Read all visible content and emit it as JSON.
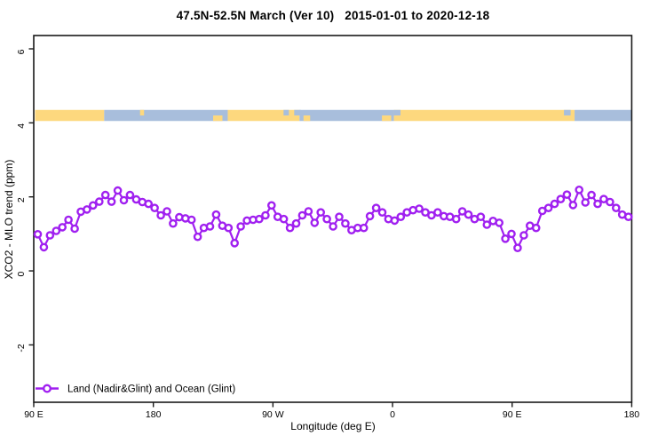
{
  "header": {
    "title": "47.5N-52.5N March (Ver 10)   2015-01-01 to 2020-12-18"
  },
  "chart_data": {
    "type": "line",
    "title": "47.5N-52.5N March (Ver 10)   2015-01-01 to 2020-12-18",
    "xlabel": "Longitude (deg E)",
    "ylabel": "XCO2 - MLO trend (ppm)",
    "grid": false,
    "background": "#ffffff",
    "axis_color": "#1a1a1a",
    "xlim": [
      90,
      540
    ],
    "ylim": [
      -3.55,
      6.36
    ],
    "x_ticks": [
      {
        "value": 90,
        "label": "90 E"
      },
      {
        "value": 180,
        "label": "180"
      },
      {
        "value": 270,
        "label": "90 W"
      },
      {
        "value": 360,
        "label": "0"
      },
      {
        "value": 450,
        "label": "90 E"
      },
      {
        "value": 540,
        "label": "180"
      }
    ],
    "y_ticks": [
      {
        "value": -2,
        "label": "-2"
      },
      {
        "value": 0,
        "label": "0"
      },
      {
        "value": 2,
        "label": "2"
      },
      {
        "value": 4,
        "label": "4"
      },
      {
        "value": 6,
        "label": "6"
      }
    ],
    "legend": {
      "position": "bottom-left",
      "label": "Land (Nadir&Glint) and Ocean (Glint)",
      "marker": "open-circle",
      "color": "#A020F0"
    },
    "series": [
      {
        "name": "Land (Nadir&Glint) and Ocean (Glint)",
        "color": "#A020F0",
        "marker": "open-circle",
        "x_first": 93,
        "x_last": 537.5,
        "values": [
          0.99,
          0.64,
          0.96,
          1.08,
          1.18,
          1.38,
          1.14,
          1.6,
          1.66,
          1.77,
          1.87,
          2.05,
          1.87,
          2.17,
          1.91,
          2.05,
          1.93,
          1.86,
          1.81,
          1.7,
          1.5,
          1.61,
          1.28,
          1.45,
          1.42,
          1.38,
          0.92,
          1.16,
          1.2,
          1.52,
          1.22,
          1.16,
          0.75,
          1.2,
          1.36,
          1.38,
          1.4,
          1.5,
          1.77,
          1.46,
          1.4,
          1.16,
          1.28,
          1.5,
          1.61,
          1.3,
          1.58,
          1.4,
          1.2,
          1.46,
          1.28,
          1.1,
          1.16,
          1.16,
          1.48,
          1.7,
          1.58,
          1.4,
          1.36,
          1.46,
          1.58,
          1.64,
          1.68,
          1.58,
          1.5,
          1.58,
          1.48,
          1.46,
          1.4,
          1.61,
          1.52,
          1.4,
          1.46,
          1.25,
          1.35,
          1.3,
          0.87,
          1.0,
          0.62,
          0.96,
          1.22,
          1.16,
          1.62,
          1.7,
          1.81,
          1.94,
          2.06,
          1.78,
          2.19,
          1.85,
          2.05,
          1.81,
          1.94,
          1.86,
          1.7,
          1.52,
          1.46
        ]
      }
    ],
    "coverage_band": {
      "description": "land/ocean observation-mode strip",
      "y_range": [
        4.05,
        4.35
      ],
      "colors": {
        "land": "#FDD87E",
        "ocean": "#A8BEDC"
      },
      "segments": [
        {
          "from": 91,
          "to": 143,
          "type": "land"
        },
        {
          "from": 143,
          "to": 236,
          "type": "ocean"
        },
        {
          "from": 236,
          "to": 290,
          "type": "land"
        },
        {
          "from": 290,
          "to": 361,
          "type": "ocean"
        },
        {
          "from": 361,
          "to": 497,
          "type": "land"
        },
        {
          "from": 497,
          "to": 540,
          "type": "ocean"
        }
      ],
      "speckles": [
        {
          "at": 170,
          "w": 3,
          "type": "land",
          "part": "top"
        },
        {
          "at": 225,
          "w": 7,
          "type": "land",
          "part": "bottom"
        },
        {
          "at": 278,
          "w": 4,
          "type": "ocean",
          "part": "top"
        },
        {
          "at": 286,
          "w": 5,
          "type": "ocean",
          "part": "top"
        },
        {
          "at": 293,
          "w": 5,
          "type": "land",
          "part": "bottom"
        },
        {
          "at": 352,
          "w": 7,
          "type": "land",
          "part": "bottom"
        },
        {
          "at": 361,
          "w": 5,
          "type": "ocean",
          "part": "top"
        },
        {
          "at": 489,
          "w": 5,
          "type": "ocean",
          "part": "top"
        }
      ]
    }
  }
}
